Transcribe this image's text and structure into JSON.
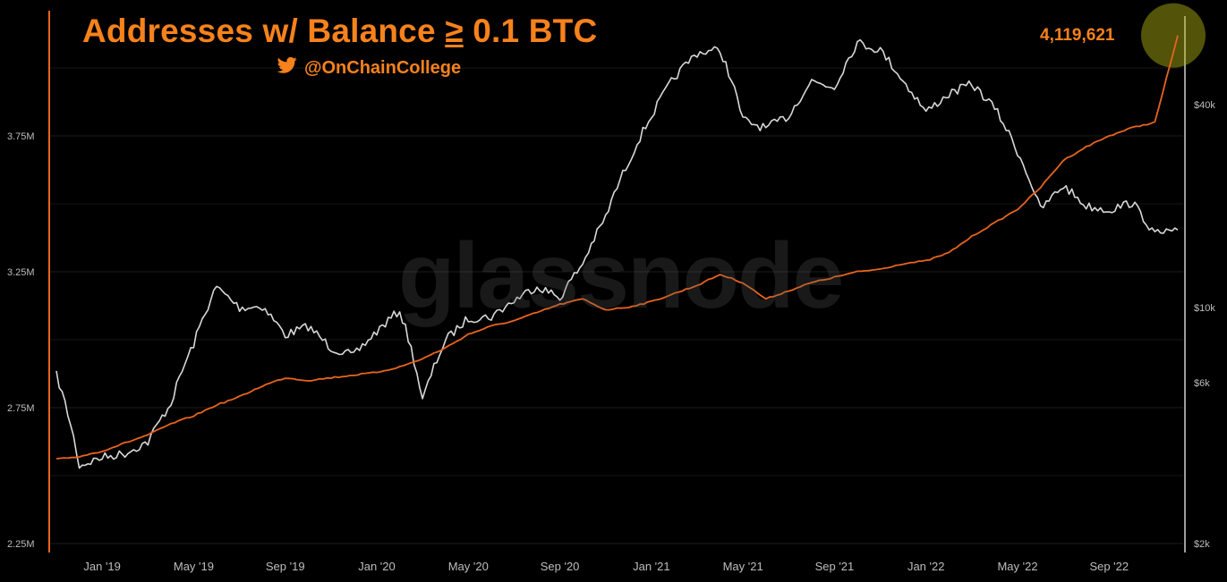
{
  "title": {
    "prefix": "Addresses w/ Balance ",
    "symbol": "≥",
    "suffix": " 0.1 BTC"
  },
  "handle": {
    "icon": "twitter-bird-icon",
    "text": "@OnChainCollege"
  },
  "watermark": "glassnode",
  "last_value_label": "4,119,621",
  "colors": {
    "addresses": "#e8641e",
    "price": "#d8d8d8",
    "title": "#f7821b",
    "highlight": "#b8b814"
  },
  "chart_data": {
    "type": "line",
    "x_ticks": [
      "Jan '19",
      "May '19",
      "Sep '19",
      "Jan '20",
      "May '20",
      "Sep '20",
      "Jan '21",
      "May '21",
      "Sep '21",
      "Jan '22",
      "May '22",
      "Sep '22"
    ],
    "x_range": [
      "2018-11",
      "2022-12"
    ],
    "y_left": {
      "ticks": [
        "2.25M",
        "2.75M",
        "3.25M",
        "3.75M"
      ],
      "range": [
        2250000,
        4250000
      ]
    },
    "y_right": {
      "ticks": [
        "$2k",
        "$6k",
        "$10k",
        "$40k"
      ],
      "scale": "log"
    },
    "grid": true,
    "series": [
      {
        "axis": "left",
        "points": [
          [
            "2018-11",
            2560000
          ],
          [
            "2018-12",
            2570000
          ],
          [
            "2019-01",
            2590000
          ],
          [
            "2019-02",
            2620000
          ],
          [
            "2019-03",
            2650000
          ],
          [
            "2019-04",
            2690000
          ],
          [
            "2019-05",
            2720000
          ],
          [
            "2019-06",
            2760000
          ],
          [
            "2019-07",
            2790000
          ],
          [
            "2019-08",
            2830000
          ],
          [
            "2019-09",
            2860000
          ],
          [
            "2019-10",
            2850000
          ],
          [
            "2019-11",
            2860000
          ],
          [
            "2019-12",
            2870000
          ],
          [
            "2020-01",
            2880000
          ],
          [
            "2020-02",
            2900000
          ],
          [
            "2020-03",
            2930000
          ],
          [
            "2020-04",
            2970000
          ],
          [
            "2020-05",
            3020000
          ],
          [
            "2020-06",
            3050000
          ],
          [
            "2020-07",
            3070000
          ],
          [
            "2020-08",
            3100000
          ],
          [
            "2020-09",
            3130000
          ],
          [
            "2020-10",
            3150000
          ],
          [
            "2020-11",
            3110000
          ],
          [
            "2020-12",
            3120000
          ],
          [
            "2021-01",
            3140000
          ],
          [
            "2021-02",
            3170000
          ],
          [
            "2021-03",
            3200000
          ],
          [
            "2021-04",
            3240000
          ],
          [
            "2021-05",
            3210000
          ],
          [
            "2021-06",
            3150000
          ],
          [
            "2021-07",
            3180000
          ],
          [
            "2021-08",
            3210000
          ],
          [
            "2021-09",
            3230000
          ],
          [
            "2021-10",
            3250000
          ],
          [
            "2021-11",
            3260000
          ],
          [
            "2021-12",
            3280000
          ],
          [
            "2022-01",
            3290000
          ],
          [
            "2022-02",
            3320000
          ],
          [
            "2022-03",
            3380000
          ],
          [
            "2022-04",
            3430000
          ],
          [
            "2022-05",
            3480000
          ],
          [
            "2022-06",
            3560000
          ],
          [
            "2022-07",
            3660000
          ],
          [
            "2022-08",
            3710000
          ],
          [
            "2022-09",
            3750000
          ],
          [
            "2022-10",
            3780000
          ],
          [
            "2022-11",
            3800000
          ],
          [
            "2022-12",
            4119621
          ]
        ]
      },
      {
        "axis": "right",
        "points": [
          [
            "2018-11",
            6300
          ],
          [
            "2018-12",
            3400
          ],
          [
            "2019-01",
            3600
          ],
          [
            "2019-02",
            3700
          ],
          [
            "2019-03",
            4000
          ],
          [
            "2019-04",
            5200
          ],
          [
            "2019-05",
            7800
          ],
          [
            "2019-06",
            11500
          ],
          [
            "2019-07",
            10000
          ],
          [
            "2019-08",
            10100
          ],
          [
            "2019-09",
            8300
          ],
          [
            "2019-10",
            8800
          ],
          [
            "2019-11",
            7600
          ],
          [
            "2019-12",
            7200
          ],
          [
            "2020-01",
            8500
          ],
          [
            "2020-02",
            9800
          ],
          [
            "2020-03",
            5300
          ],
          [
            "2020-04",
            8000
          ],
          [
            "2020-05",
            9300
          ],
          [
            "2020-06",
            9400
          ],
          [
            "2020-07",
            10500
          ],
          [
            "2020-08",
            11600
          ],
          [
            "2020-09",
            10700
          ],
          [
            "2020-10",
            13500
          ],
          [
            "2020-11",
            18500
          ],
          [
            "2020-12",
            27000
          ],
          [
            "2021-01",
            37000
          ],
          [
            "2021-02",
            48000
          ],
          [
            "2021-03",
            57000
          ],
          [
            "2021-04",
            58000
          ],
          [
            "2021-05",
            36000
          ],
          [
            "2021-06",
            34000
          ],
          [
            "2021-07",
            37000
          ],
          [
            "2021-08",
            47000
          ],
          [
            "2021-09",
            45000
          ],
          [
            "2021-10",
            61000
          ],
          [
            "2021-11",
            58000
          ],
          [
            "2021-12",
            47000
          ],
          [
            "2022-01",
            38000
          ],
          [
            "2022-02",
            43000
          ],
          [
            "2022-03",
            46000
          ],
          [
            "2022-04",
            39000
          ],
          [
            "2022-05",
            29000
          ],
          [
            "2022-06",
            19500
          ],
          [
            "2022-07",
            23000
          ],
          [
            "2022-08",
            20000
          ],
          [
            "2022-09",
            19500
          ],
          [
            "2022-10",
            20500
          ],
          [
            "2022-11",
            16500
          ],
          [
            "2022-12",
            17000
          ]
        ]
      }
    ]
  }
}
